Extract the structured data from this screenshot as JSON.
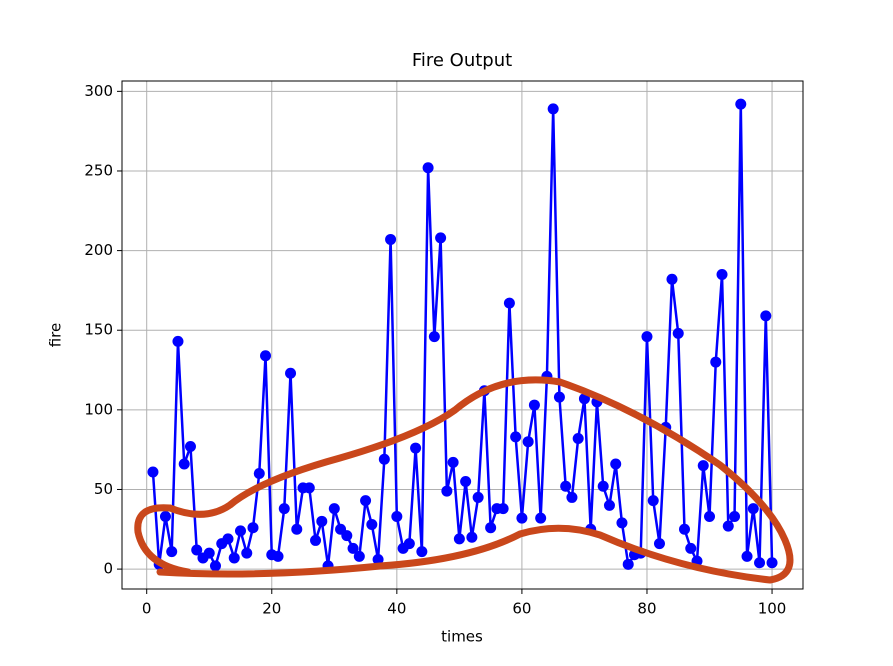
{
  "chart_data": {
    "type": "line",
    "title": "Fire Output",
    "xlabel": "times",
    "ylabel": "fire",
    "x": [
      1,
      2,
      3,
      4,
      5,
      6,
      7,
      8,
      9,
      10,
      11,
      12,
      13,
      14,
      15,
      16,
      17,
      18,
      19,
      20,
      21,
      22,
      23,
      24,
      25,
      26,
      27,
      28,
      29,
      30,
      31,
      32,
      33,
      34,
      35,
      36,
      37,
      38,
      39,
      40,
      41,
      42,
      43,
      44,
      45,
      46,
      47,
      48,
      49,
      50,
      51,
      52,
      53,
      54,
      55,
      56,
      57,
      58,
      59,
      60,
      61,
      62,
      63,
      64,
      65,
      66,
      67,
      68,
      69,
      70,
      71,
      72,
      73,
      74,
      75,
      76,
      77,
      78,
      79,
      80,
      81,
      82,
      83,
      84,
      85,
      86,
      87,
      88,
      89,
      90,
      91,
      92,
      93,
      94,
      95,
      96,
      97,
      98,
      99,
      100
    ],
    "series": [
      {
        "name": "fire",
        "color": "#0000ff",
        "values": [
          61,
          3,
          33,
          11,
          143,
          66,
          77,
          12,
          7,
          10,
          2,
          16,
          19,
          7,
          24,
          10,
          26,
          60,
          134,
          9,
          8,
          38,
          123,
          25,
          51,
          51,
          18,
          30,
          2,
          38,
          25,
          21,
          13,
          8,
          43,
          28,
          6,
          69,
          207,
          33,
          13,
          16,
          76,
          11,
          252,
          146,
          208,
          49,
          67,
          19,
          55,
          20,
          45,
          112,
          26,
          38,
          38,
          167,
          83,
          32,
          80,
          103,
          32,
          121,
          289,
          108,
          52,
          45,
          82,
          107,
          25,
          105,
          52,
          40,
          66,
          29,
          3,
          9,
          10,
          146,
          43,
          16,
          89,
          182,
          148,
          25,
          13,
          5,
          65,
          33,
          130,
          185,
          27,
          33,
          292,
          8,
          38,
          4,
          159,
          4
        ]
      }
    ],
    "xlim": [
      -3.95,
      104.95
    ],
    "ylim": [
      -12.5,
      306.5
    ],
    "xticks": [
      0,
      20,
      40,
      60,
      80,
      100
    ],
    "yticks": [
      0,
      50,
      100,
      150,
      200,
      250,
      300
    ],
    "grid": true
  }
}
